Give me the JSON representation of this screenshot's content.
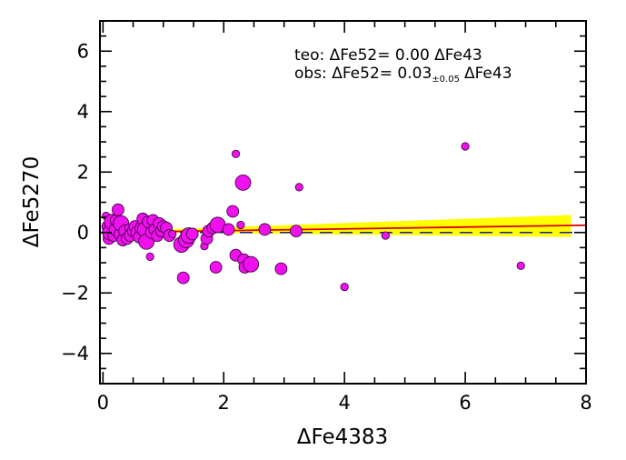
{
  "chart_data": {
    "type": "scatter",
    "xlabel": "ΔFe4383",
    "ylabel": "ΔFe5270",
    "xlim": [
      -0.05,
      8
    ],
    "ylim": [
      -5,
      7
    ],
    "xticks": [
      0,
      2,
      4,
      6,
      8
    ],
    "yticks": [
      -4,
      -2,
      0,
      2,
      4,
      6
    ],
    "x_tick_labels": [
      "0",
      "2",
      "4",
      "6",
      "8"
    ],
    "y_tick_labels": [
      "−4",
      "−2",
      "0",
      "2",
      "4",
      "6"
    ],
    "grid": false,
    "colors": {
      "points": "#ee11ee",
      "point_edge": "#330033",
      "fit_line": "#dd0000",
      "band": "#ffff00",
      "theory_line": "#1a1aa0"
    },
    "annotations": {
      "teo": {
        "lead": "teo:",
        "eq": "ΔFe52=",
        "coef": "0.00",
        "sub": "",
        "tail": "ΔFe43"
      },
      "obs": {
        "lead": "obs:",
        "eq": "ΔFe52=",
        "coef": "0.03",
        "sub": "±0.05",
        "tail": "ΔFe43"
      }
    },
    "theory_line": {
      "slope": 0.0,
      "intercept": 0.0,
      "style": "dashed"
    },
    "fit_line": {
      "slope": 0.03,
      "intercept": 0.0
    },
    "band": {
      "x_range": [
        1.0,
        7.75
      ],
      "upper": [
        0.1,
        0.58
      ],
      "lower": [
        0.0,
        -0.15
      ]
    },
    "points": [
      {
        "x": 0.05,
        "y": 0.55,
        "s": 1
      },
      {
        "x": 0.08,
        "y": 0.2,
        "s": 2
      },
      {
        "x": 0.1,
        "y": -0.2,
        "s": 2
      },
      {
        "x": 0.12,
        "y": 0.0,
        "s": 3
      },
      {
        "x": 0.15,
        "y": 0.35,
        "s": 3
      },
      {
        "x": 0.18,
        "y": -0.1,
        "s": 2
      },
      {
        "x": 0.2,
        "y": 0.1,
        "s": 2
      },
      {
        "x": 0.22,
        "y": 0.4,
        "s": 2
      },
      {
        "x": 0.25,
        "y": 0.75,
        "s": 2
      },
      {
        "x": 0.28,
        "y": -0.05,
        "s": 2
      },
      {
        "x": 0.3,
        "y": 0.3,
        "s": 3
      },
      {
        "x": 0.33,
        "y": -0.25,
        "s": 2
      },
      {
        "x": 0.36,
        "y": 0.05,
        "s": 2
      },
      {
        "x": 0.4,
        "y": -0.2,
        "s": 2
      },
      {
        "x": 0.42,
        "y": 0.15,
        "s": 1
      },
      {
        "x": 0.45,
        "y": -0.1,
        "s": 2
      },
      {
        "x": 0.5,
        "y": 0.05,
        "s": 2
      },
      {
        "x": 0.53,
        "y": 0.2,
        "s": 2
      },
      {
        "x": 0.56,
        "y": 0.0,
        "s": 2
      },
      {
        "x": 0.6,
        "y": -0.15,
        "s": 2
      },
      {
        "x": 0.63,
        "y": 0.15,
        "s": 2
      },
      {
        "x": 0.66,
        "y": 0.45,
        "s": 2
      },
      {
        "x": 0.7,
        "y": 0.1,
        "s": 3
      },
      {
        "x": 0.72,
        "y": -0.3,
        "s": 3
      },
      {
        "x": 0.75,
        "y": 0.35,
        "s": 2
      },
      {
        "x": 0.78,
        "y": -0.8,
        "s": 1
      },
      {
        "x": 0.8,
        "y": 0.0,
        "s": 2
      },
      {
        "x": 0.83,
        "y": 0.4,
        "s": 2
      },
      {
        "x": 0.86,
        "y": 0.1,
        "s": 2
      },
      {
        "x": 0.9,
        "y": -0.1,
        "s": 2
      },
      {
        "x": 0.93,
        "y": 0.3,
        "s": 2
      },
      {
        "x": 0.97,
        "y": 0.05,
        "s": 2
      },
      {
        "x": 1.0,
        "y": 0.2,
        "s": 2
      },
      {
        "x": 1.05,
        "y": 0.15,
        "s": 2
      },
      {
        "x": 1.1,
        "y": -0.1,
        "s": 2
      },
      {
        "x": 1.15,
        "y": -0.05,
        "s": 1
      },
      {
        "x": 1.3,
        "y": -0.4,
        "s": 3
      },
      {
        "x": 1.33,
        "y": -1.5,
        "s": 2
      },
      {
        "x": 1.38,
        "y": -0.25,
        "s": 3
      },
      {
        "x": 1.42,
        "y": -0.1,
        "s": 3
      },
      {
        "x": 1.48,
        "y": -0.05,
        "s": 2
      },
      {
        "x": 1.68,
        "y": -0.45,
        "s": 1
      },
      {
        "x": 1.72,
        "y": -0.2,
        "s": 2
      },
      {
        "x": 1.75,
        "y": 0.05,
        "s": 2
      },
      {
        "x": 1.82,
        "y": 0.15,
        "s": 2
      },
      {
        "x": 1.9,
        "y": 0.25,
        "s": 3
      },
      {
        "x": 1.87,
        "y": -1.15,
        "s": 2
      },
      {
        "x": 2.08,
        "y": 0.1,
        "s": 2
      },
      {
        "x": 2.15,
        "y": 0.7,
        "s": 2
      },
      {
        "x": 2.2,
        "y": 2.6,
        "s": 1
      },
      {
        "x": 2.2,
        "y": -0.75,
        "s": 2
      },
      {
        "x": 2.28,
        "y": 0.25,
        "s": 1
      },
      {
        "x": 2.32,
        "y": 1.65,
        "s": 3
      },
      {
        "x": 2.33,
        "y": -0.9,
        "s": 2
      },
      {
        "x": 2.35,
        "y": -1.15,
        "s": 2
      },
      {
        "x": 2.45,
        "y": -1.05,
        "s": 3
      },
      {
        "x": 2.68,
        "y": 0.1,
        "s": 2
      },
      {
        "x": 2.95,
        "y": -1.2,
        "s": 2
      },
      {
        "x": 3.2,
        "y": 0.05,
        "s": 2
      },
      {
        "x": 3.25,
        "y": 1.5,
        "s": 1
      },
      {
        "x": 4.0,
        "y": -1.8,
        "s": 1
      },
      {
        "x": 4.68,
        "y": -0.1,
        "s": 1
      },
      {
        "x": 6.0,
        "y": 2.85,
        "s": 1
      },
      {
        "x": 6.92,
        "y": -1.1,
        "s": 1
      }
    ]
  }
}
